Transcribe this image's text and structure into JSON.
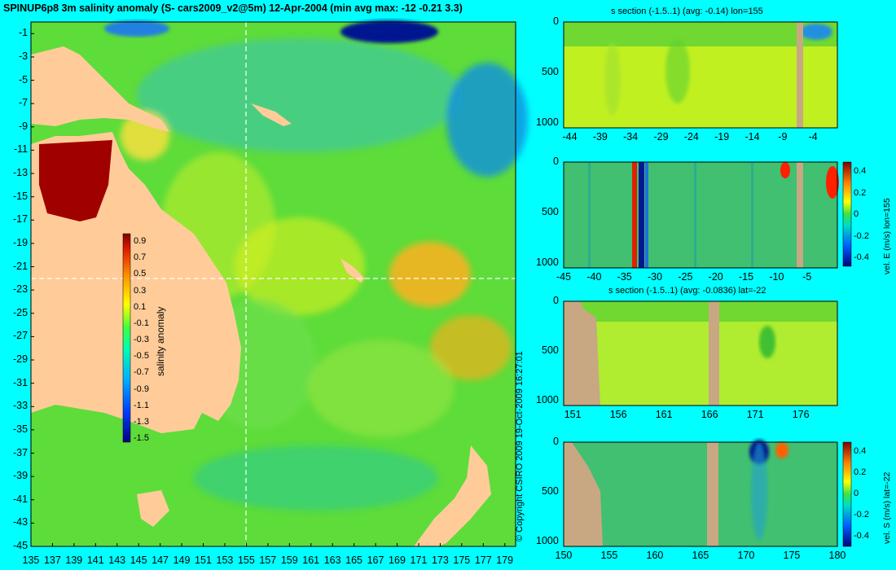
{
  "page": {
    "title": "SPINUP6p8 3m salinity anomaly (S- cars2009_v2@5m) 12-Apr-2004 (min avg max: -12 -0.21 3.3)",
    "copyright": "© Copyright CSIRO 2009    19-Oct-2009 16:27:01"
  },
  "colors": {
    "background": "#00ffff",
    "land": "#ffcc99",
    "section_land": "#c8a883"
  },
  "map": {
    "ylabels": [
      "-1",
      "-3",
      "-5",
      "-7",
      "-9",
      "-11",
      "-13",
      "-15",
      "-17",
      "-19",
      "-21",
      "-23",
      "-25",
      "-27",
      "-29",
      "-31",
      "-33",
      "-35",
      "-37",
      "-39",
      "-41",
      "-43",
      "-45"
    ],
    "xlabels": [
      "135",
      "137",
      "139",
      "141",
      "143",
      "145",
      "147",
      "149",
      "151",
      "153",
      "155",
      "157",
      "159",
      "161",
      "163",
      "165",
      "167",
      "169",
      "171",
      "173",
      "175",
      "177",
      "179"
    ],
    "colorbar": {
      "label": "salinity anomaly",
      "ticks": [
        "0.9",
        "0.7",
        "0.5",
        "0.3",
        "0.1",
        "-0.1",
        "-0.3",
        "-0.5",
        "-0.7",
        "-0.9",
        "-1.1",
        "-1.3",
        "-1.5"
      ]
    }
  },
  "chart_data": [
    {
      "type": "heatmap",
      "title": "SPINUP6p8 3m salinity anomaly (S- cars2009_v2@5m) 12-Apr-2004 (min avg max: -12 -0.21 3.3)",
      "xlabel": "",
      "ylabel": "",
      "xlim": [
        135,
        180
      ],
      "ylim": [
        -45,
        0
      ],
      "section_lines": {
        "lon": 155,
        "lat": -22
      },
      "colorbar": {
        "label": "salinity anomaly",
        "range": [
          -1.5,
          0.9
        ]
      },
      "stats": {
        "min": -12,
        "avg": -0.21,
        "max": 3.3
      }
    },
    {
      "type": "heatmap",
      "title": "s section (-1.5..1) (avg: -0.14) lon=155",
      "xlim": [
        -45,
        0
      ],
      "ylim": [
        1050,
        0
      ],
      "xticks": [
        "-44",
        "-39",
        "-34",
        "-29",
        "-24",
        "-19",
        "-14",
        "-9",
        "-4"
      ],
      "yticks": [
        "0",
        "500",
        "1000"
      ]
    },
    {
      "type": "heatmap",
      "title": "",
      "colorbar_label": "vel. E (m/s) lon=155",
      "xlim": [
        -45,
        0
      ],
      "ylim": [
        1050,
        0
      ],
      "xticks": [
        "-45",
        "-40",
        "-35",
        "-30",
        "-25",
        "-20",
        "-15",
        "-10",
        "-5"
      ],
      "yticks": [
        "0",
        "500",
        "1000"
      ],
      "colorbar_ticks": [
        "0.4",
        "0.2",
        "0",
        "-0.2",
        "-0.4"
      ]
    },
    {
      "type": "heatmap",
      "title": "s section (-1.5..1) (avg: -0.0836) lat=-22",
      "xlim": [
        150,
        180
      ],
      "ylim": [
        1050,
        0
      ],
      "xticks": [
        "151",
        "156",
        "161",
        "166",
        "171",
        "176"
      ],
      "yticks": [
        "0",
        "500",
        "1000"
      ]
    },
    {
      "type": "heatmap",
      "title": "",
      "colorbar_label": "vel. S (m/s) lat=-22",
      "xlim": [
        150,
        180
      ],
      "ylim": [
        1050,
        0
      ],
      "xticks": [
        "150",
        "155",
        "160",
        "165",
        "170",
        "175",
        "180"
      ],
      "yticks": [
        "0",
        "500",
        "1000"
      ],
      "colorbar_ticks": [
        "0.4",
        "0.2",
        "0",
        "-0.2",
        "-0.4"
      ]
    }
  ]
}
